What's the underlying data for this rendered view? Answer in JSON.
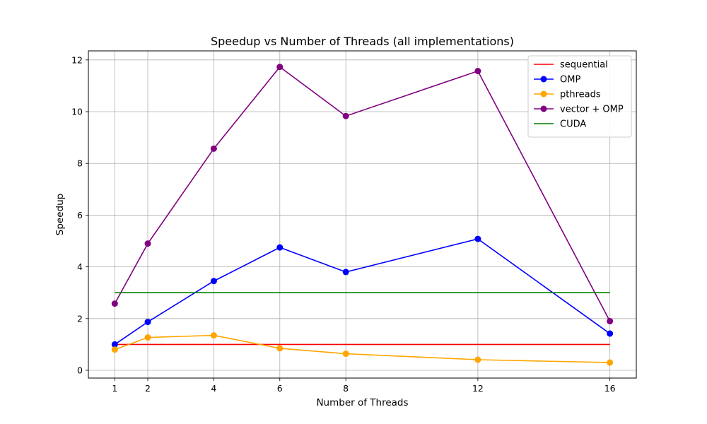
{
  "chart_data": {
    "type": "line",
    "title": "Speedup vs Number of Threads (all implementations)",
    "xlabel": "Number of Threads",
    "ylabel": "Speedup",
    "x": [
      1,
      2,
      4,
      6,
      8,
      12,
      16
    ],
    "xticks": [
      1,
      2,
      4,
      6,
      8,
      12,
      16
    ],
    "xlim": [
      0.2,
      16.8
    ],
    "ylim": [
      -0.3,
      12.35
    ],
    "yticks": [
      0,
      2,
      4,
      6,
      8,
      10,
      12
    ],
    "grid": true,
    "legend_position": "top-right",
    "series": [
      {
        "name": "sequential",
        "color": "#ff0000",
        "marker": false,
        "values": [
          1,
          1,
          1,
          1,
          1,
          1,
          1
        ]
      },
      {
        "name": "OMP",
        "color": "#0000ff",
        "marker": true,
        "values": [
          1.0,
          1.87,
          3.45,
          4.75,
          3.8,
          5.08,
          1.42
        ]
      },
      {
        "name": "pthreads",
        "color": "#ffa500",
        "marker": true,
        "values": [
          0.8,
          1.27,
          1.35,
          0.85,
          0.64,
          0.41,
          0.3
        ]
      },
      {
        "name": "vector + OMP",
        "color": "#800080",
        "marker": true,
        "values": [
          2.58,
          4.9,
          8.57,
          11.73,
          9.83,
          11.57,
          1.9
        ]
      },
      {
        "name": "CUDA",
        "color": "#008000",
        "marker": false,
        "values": [
          3,
          3,
          3,
          3,
          3,
          3,
          3
        ]
      }
    ]
  }
}
